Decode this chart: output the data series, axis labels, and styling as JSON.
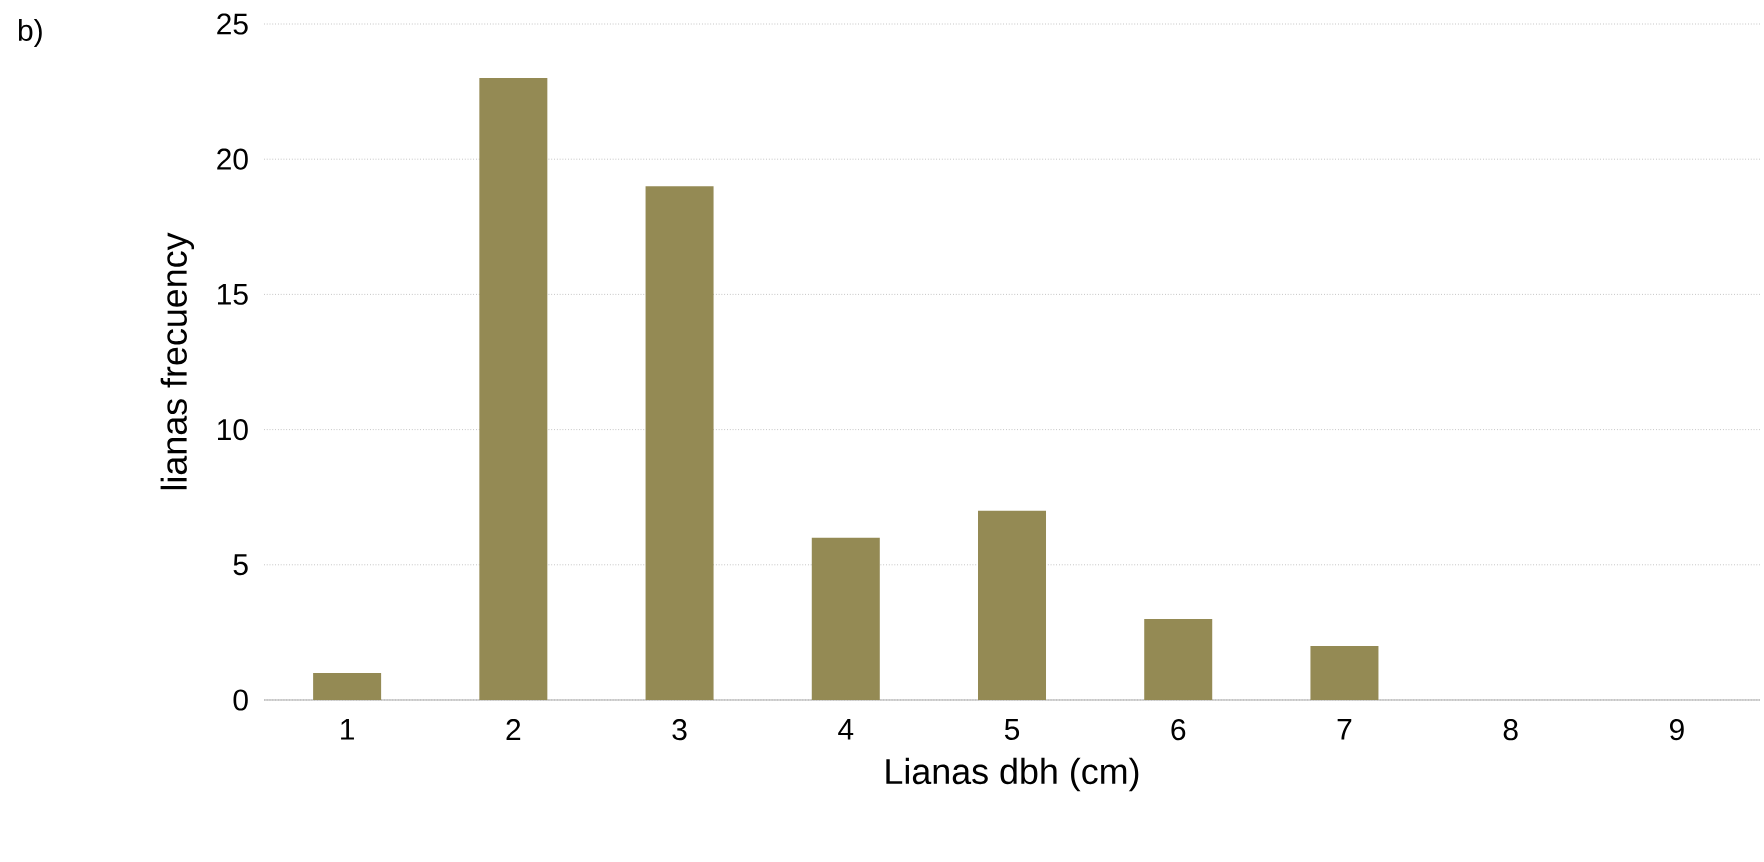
{
  "chart_data": {
    "type": "bar",
    "xlabel": "Lianas dbh (cm)",
    "ylabel": "lianas frecuency",
    "categories": [
      "1",
      "2",
      "3",
      "4",
      "5",
      "6",
      "7",
      "8",
      "9"
    ],
    "values": [
      1,
      23,
      19,
      6,
      7,
      3,
      2,
      0,
      0
    ],
    "color": "#948a54",
    "ylim": [
      0,
      25
    ],
    "yticks": [
      0,
      5,
      10,
      15,
      20,
      25
    ],
    "grid": "y",
    "annotations": [
      "b)"
    ]
  }
}
